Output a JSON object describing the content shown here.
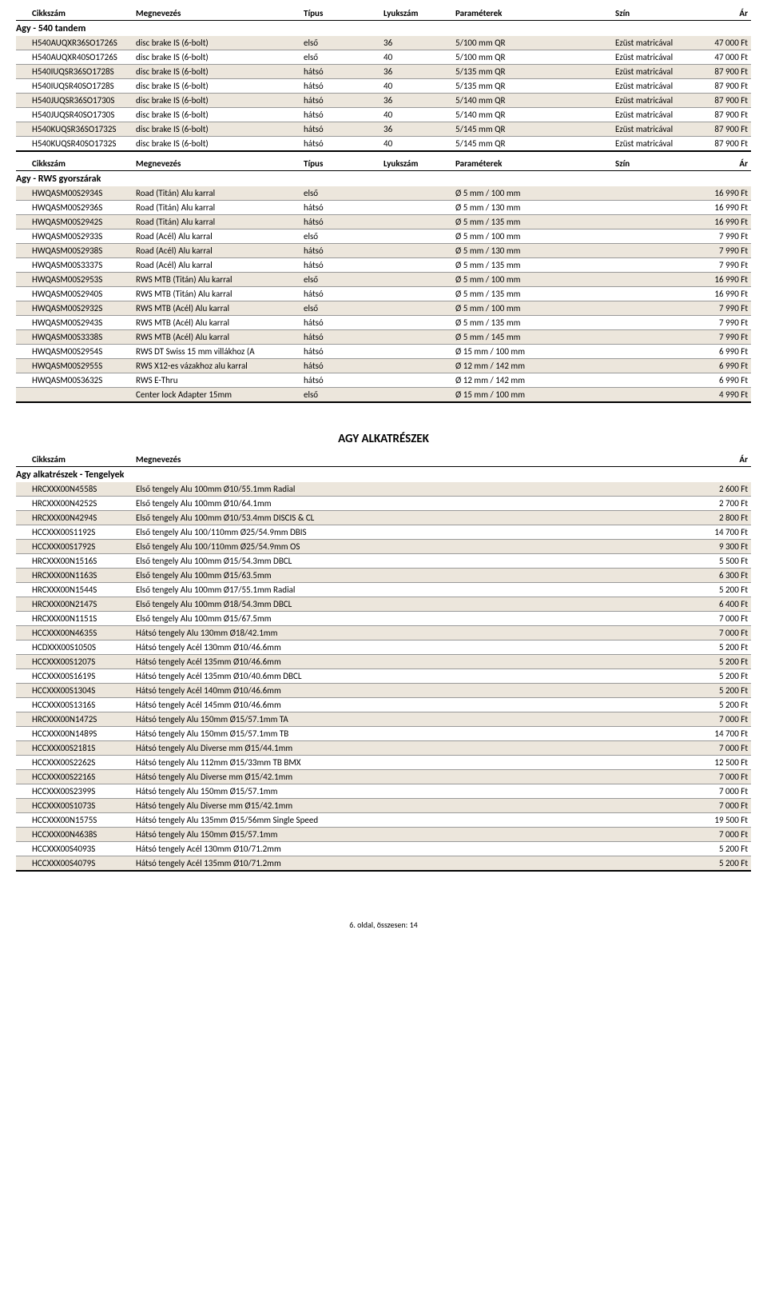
{
  "labels": {
    "cikkszam": "Cikkszám",
    "megnevezes": "Megnevezés",
    "tipus": "Típus",
    "lyukszam": "Lyukszám",
    "parameterek": "Paraméterek",
    "szin": "Szín",
    "ar": "Ár"
  },
  "section1": {
    "title": "Agy - 540 tandem",
    "rows": [
      {
        "cikk": "H540AUQXR36SO1726S",
        "megn": "disc brake IS (6-bolt)",
        "tipus": "első",
        "lyuk": "36",
        "param": "5/100 mm QR",
        "szin": "Ezüst matricával",
        "ar": "47 000 Ft"
      },
      {
        "cikk": "H540AUQXR40SO1726S",
        "megn": "disc brake IS (6-bolt)",
        "tipus": "első",
        "lyuk": "40",
        "param": "5/100 mm QR",
        "szin": "Ezüst matricával",
        "ar": "47 000 Ft"
      },
      {
        "cikk": "H540IUQSR36SO1728S",
        "megn": "disc brake IS (6-bolt)",
        "tipus": "hátsó",
        "lyuk": "36",
        "param": "5/135 mm QR",
        "szin": "Ezüst matricával",
        "ar": "87 900 Ft"
      },
      {
        "cikk": "H540IUQSR40SO1728S",
        "megn": "disc brake IS (6-bolt)",
        "tipus": "hátsó",
        "lyuk": "40",
        "param": "5/135 mm QR",
        "szin": "Ezüst matricával",
        "ar": "87 900 Ft"
      },
      {
        "cikk": "H540JUQSR36SO1730S",
        "megn": "disc brake IS (6-bolt)",
        "tipus": "hátsó",
        "lyuk": "36",
        "param": "5/140 mm QR",
        "szin": "Ezüst matricával",
        "ar": "87 900 Ft"
      },
      {
        "cikk": "H540JUQSR40SO1730S",
        "megn": "disc brake IS (6-bolt)",
        "tipus": "hátsó",
        "lyuk": "40",
        "param": "5/140 mm QR",
        "szin": "Ezüst matricával",
        "ar": "87 900 Ft"
      },
      {
        "cikk": "H540KUQSR36SO1732S",
        "megn": "disc brake IS (6-bolt)",
        "tipus": "hátsó",
        "lyuk": "36",
        "param": "5/145 mm QR",
        "szin": "Ezüst matricával",
        "ar": "87 900 Ft"
      },
      {
        "cikk": "H540KUQSR40SO1732S",
        "megn": "disc brake IS (6-bolt)",
        "tipus": "hátsó",
        "lyuk": "40",
        "param": "5/145 mm QR",
        "szin": "Ezüst matricával",
        "ar": "87 900 Ft"
      }
    ]
  },
  "section2": {
    "title": "Agy - RWS gyorszárak",
    "rows": [
      {
        "cikk": "HWQASM00S2934S",
        "megn": "Road (Titán) Alu karral",
        "tipus": "első",
        "lyuk": "",
        "param": "Ø 5 mm / 100 mm",
        "szin": "",
        "ar": "16 990 Ft"
      },
      {
        "cikk": "HWQASM00S2936S",
        "megn": "Road (Titán) Alu karral",
        "tipus": "hátsó",
        "lyuk": "",
        "param": "Ø 5 mm / 130 mm",
        "szin": "",
        "ar": "16 990 Ft"
      },
      {
        "cikk": "HWQASM00S2942S",
        "megn": "Road (Titán) Alu karral",
        "tipus": "hátsó",
        "lyuk": "",
        "param": "Ø 5 mm / 135 mm",
        "szin": "",
        "ar": "16 990 Ft"
      },
      {
        "cikk": "HWQASM00S2933S",
        "megn": "Road (Acél) Alu karral",
        "tipus": "első",
        "lyuk": "",
        "param": "Ø 5 mm / 100 mm",
        "szin": "",
        "ar": "7 990 Ft"
      },
      {
        "cikk": "HWQASM00S2938S",
        "megn": "Road (Acél) Alu karral",
        "tipus": "hátsó",
        "lyuk": "",
        "param": "Ø 5 mm / 130 mm",
        "szin": "",
        "ar": "7 990 Ft"
      },
      {
        "cikk": "HWQASM00S3337S",
        "megn": "Road (Acél) Alu karral",
        "tipus": "hátsó",
        "lyuk": "",
        "param": "Ø 5 mm / 135 mm",
        "szin": "",
        "ar": "7 990 Ft"
      },
      {
        "cikk": "HWQASM00S2953S",
        "megn": "RWS MTB (Titán) Alu karral",
        "tipus": "első",
        "lyuk": "",
        "param": "Ø 5 mm / 100 mm",
        "szin": "",
        "ar": "16 990 Ft"
      },
      {
        "cikk": "HWQASM00S2940S",
        "megn": "RWS MTB (Titán) Alu karral",
        "tipus": "hátsó",
        "lyuk": "",
        "param": "Ø 5 mm / 135 mm",
        "szin": "",
        "ar": "16 990 Ft"
      },
      {
        "cikk": "HWQASM00S2932S",
        "megn": "RWS MTB (Acél) Alu karral",
        "tipus": "első",
        "lyuk": "",
        "param": "Ø 5 mm / 100 mm",
        "szin": "",
        "ar": "7 990 Ft"
      },
      {
        "cikk": "HWQASM00S2943S",
        "megn": "RWS MTB (Acél) Alu karral",
        "tipus": "hátsó",
        "lyuk": "",
        "param": "Ø 5 mm / 135 mm",
        "szin": "",
        "ar": "7 990 Ft"
      },
      {
        "cikk": "HWQASM00S3338S",
        "megn": "RWS MTB (Acél) Alu karral",
        "tipus": "hátsó",
        "lyuk": "",
        "param": "Ø 5 mm / 145 mm",
        "szin": "",
        "ar": "7 990 Ft"
      },
      {
        "cikk": "HWQASM00S2954S",
        "megn": "RWS DT Swiss 15 mm villákhoz (A",
        "tipus": "hátsó",
        "lyuk": "",
        "param": "Ø 15 mm / 100 mm",
        "szin": "",
        "ar": "6 990 Ft"
      },
      {
        "cikk": "HWQASM00S2955S",
        "megn": "RWS X12-es vázakhoz alu karral",
        "tipus": "hátsó",
        "lyuk": "",
        "param": "Ø 12 mm / 142 mm",
        "szin": "",
        "ar": "6 990 Ft"
      },
      {
        "cikk": "HWQASM00S3632S",
        "megn": "RWS E-Thru",
        "tipus": "hátsó",
        "lyuk": "",
        "param": "Ø 12 mm / 142 mm",
        "szin": "",
        "ar": "6 990 Ft"
      },
      {
        "cikk": "",
        "megn": "Center lock Adapter 15mm",
        "tipus": "első",
        "lyuk": "",
        "param": "Ø 15 mm / 100 mm",
        "szin": "",
        "ar": "4 990 Ft"
      }
    ]
  },
  "section3": {
    "bigtitle": "AGY ALKATRÉSZEK",
    "title": "Agy alkatrészek - Tengelyek",
    "rows": [
      {
        "cikk": "HRCXXX00N4558S",
        "megn": "Első tengely Alu 100mm Ø10/55.1mm Radial",
        "ar": "2 600 Ft"
      },
      {
        "cikk": "HRCXXX00N4252S",
        "megn": "Első tengely Alu 100mm Ø10/64.1mm",
        "ar": "2 700 Ft"
      },
      {
        "cikk": "HRCXXX00N4294S",
        "megn": "Első tengely Alu 100mm Ø10/53.4mm DISCIS & CL",
        "ar": "2 800 Ft"
      },
      {
        "cikk": "HCCXXX00S1192S",
        "megn": "Első tengely Alu 100/110mm Ø25/54.9mm DBIS",
        "ar": "14 700 Ft"
      },
      {
        "cikk": "HCCXXX00S1792S",
        "megn": "Első tengely Alu 100/110mm Ø25/54.9mm OS",
        "ar": "9 300 Ft"
      },
      {
        "cikk": "HRCXXX00N1516S",
        "megn": "Első tengely Alu 100mm Ø15/54.3mm DBCL",
        "ar": "5 500 Ft"
      },
      {
        "cikk": "HRCXXX00N1163S",
        "megn": "Első tengely Alu 100mm Ø15/63.5mm",
        "ar": "6 300 Ft"
      },
      {
        "cikk": "HRCXXX00N1544S",
        "megn": "Első tengely Alu 100mm Ø17/55.1mm Radial",
        "ar": "5 200 Ft"
      },
      {
        "cikk": "HRCXXX00N2147S",
        "megn": "Első tengely Alu 100mm Ø18/54.3mm DBCL",
        "ar": "6 400 Ft"
      },
      {
        "cikk": "HRCXXX00N1151S",
        "megn": "Első tengely Alu 100mm Ø15/67.5mm",
        "ar": "7 000 Ft"
      },
      {
        "cikk": "HCCXXX00N4635S",
        "megn": "Hátsó tengely Alu 130mm Ø18/42.1mm",
        "ar": "7 000 Ft"
      },
      {
        "cikk": "HCDXXX00S1050S",
        "megn": "Hátsó tengely Acél 130mm Ø10/46.6mm",
        "ar": "5 200 Ft"
      },
      {
        "cikk": "HCCXXX00S1207S",
        "megn": "Hátsó tengely Acél 135mm Ø10/46.6mm",
        "ar": "5 200 Ft"
      },
      {
        "cikk": "HCCXXX00S1619S",
        "megn": "Hátsó tengely Acél 135mm Ø10/40.6mm DBCL",
        "ar": "5 200 Ft"
      },
      {
        "cikk": "HCCXXX00S1304S",
        "megn": "Hátsó tengely Acél 140mm Ø10/46.6mm",
        "ar": "5 200 Ft"
      },
      {
        "cikk": "HCCXXX00S1316S",
        "megn": "Hátsó tengely Acél 145mm Ø10/46.6mm",
        "ar": "5 200 Ft"
      },
      {
        "cikk": "HRCXXX00N1472S",
        "megn": "Hátsó tengely Alu 150mm Ø15/57.1mm TA",
        "ar": "7 000 Ft"
      },
      {
        "cikk": "HCCXXX00N1489S",
        "megn": "Hátsó tengely Alu 150mm Ø15/57.1mm TB",
        "ar": "14 700 Ft"
      },
      {
        "cikk": "HCCXXX00S2181S",
        "megn": "Hátsó tengely Alu Diverse mm Ø15/44.1mm",
        "ar": "7 000 Ft"
      },
      {
        "cikk": "HCCXXX00S2262S",
        "megn": "Hátsó tengely Alu 112mm Ø15/33mm TB BMX",
        "ar": "12 500 Ft"
      },
      {
        "cikk": "HCCXXX00S2216S",
        "megn": "Hátsó tengely Alu Diverse mm Ø15/42.1mm",
        "ar": "7 000 Ft"
      },
      {
        "cikk": "HCCXXX00S2399S",
        "megn": "Hátsó tengely Alu 150mm Ø15/57.1mm",
        "ar": "7 000 Ft"
      },
      {
        "cikk": "HCCXXX00S1073S",
        "megn": "Hátsó tengely Alu Diverse mm Ø15/42.1mm",
        "ar": "7 000 Ft"
      },
      {
        "cikk": "HCCXXX00N1575S",
        "megn": "Hátsó tengely Alu 135mm Ø15/56mm Single Speed",
        "ar": "19 500 Ft"
      },
      {
        "cikk": "HCCXXX00N4638S",
        "megn": "Hátsó tengely Alu 150mm Ø15/57.1mm",
        "ar": "7 000 Ft"
      },
      {
        "cikk": "HCCXXX00S4093S",
        "megn": "Hátsó tengely Acél 130mm Ø10/71.2mm",
        "ar": "5 200 Ft"
      },
      {
        "cikk": "HCCXXX00S4079S",
        "megn": "Hátsó tengely Acél 135mm Ø10/71.2mm",
        "ar": "5 200 Ft"
      }
    ]
  },
  "footer": "6. oldal, összesen: 14",
  "style": {
    "alt_bg": "#ece6dc",
    "row_border": "#999999",
    "header_border": "#000000",
    "body_bg": "#ffffff",
    "font": "Calibri, Arial, sans-serif"
  }
}
